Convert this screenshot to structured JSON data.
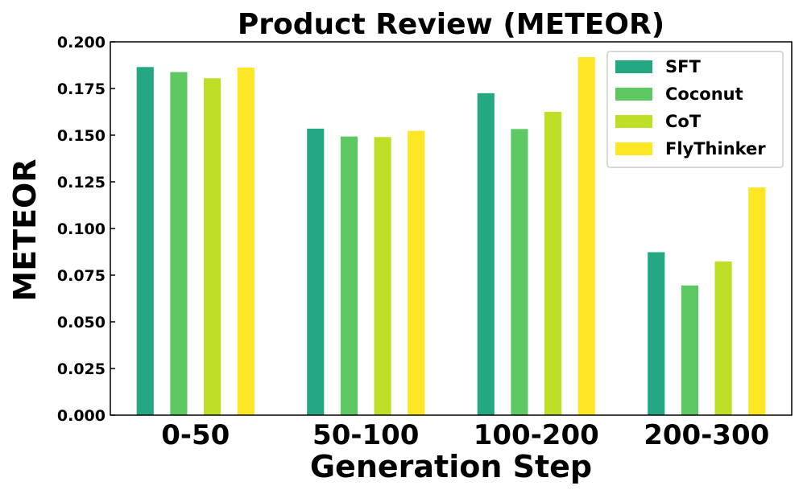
{
  "chart_data": {
    "type": "bar",
    "title": "Product Review (METEOR)",
    "xlabel": "Generation Step",
    "ylabel": "METEOR",
    "categories": [
      "0-50",
      "50-100",
      "100-200",
      "200-300"
    ],
    "ylim": [
      0,
      0.2
    ],
    "yticks": [
      "0.000",
      "0.025",
      "0.050",
      "0.075",
      "0.100",
      "0.125",
      "0.150",
      "0.175",
      "0.200"
    ],
    "legend_position": "top-right",
    "grid": false,
    "series": [
      {
        "name": "SFT",
        "color": "#24a884",
        "values": [
          0.1865,
          0.1535,
          0.1725,
          0.0873
        ]
      },
      {
        "name": "Coconut",
        "color": "#5ec962",
        "values": [
          0.1838,
          0.1493,
          0.1533,
          0.0695
        ]
      },
      {
        "name": "CoT",
        "color": "#bddf26",
        "values": [
          0.1805,
          0.149,
          0.1625,
          0.0823
        ]
      },
      {
        "name": "FlyThinker",
        "color": "#fde725",
        "values": [
          0.1862,
          0.1523,
          0.1918,
          0.122
        ]
      }
    ]
  }
}
